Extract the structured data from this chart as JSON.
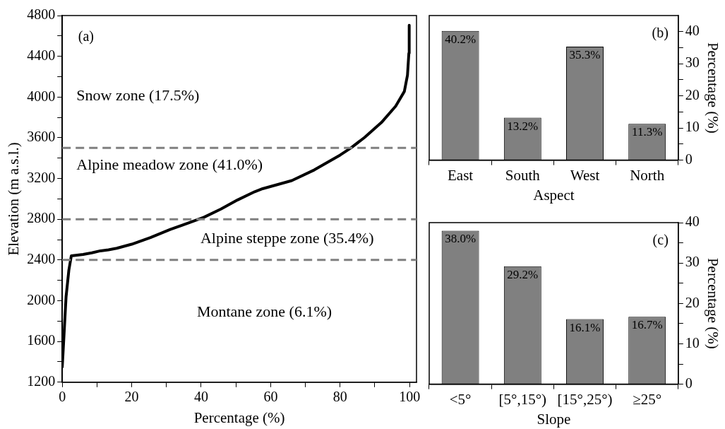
{
  "chart_data": [
    {
      "type": "line",
      "xlabel": "Percentage (%)",
      "ylabel": "Elevation (m a.s.l.)",
      "xlim": [
        0,
        102
      ],
      "ylim": [
        1200,
        4800
      ],
      "xticks": [
        0,
        {
          "value": 10,
          "label": null
        },
        20,
        {
          "value": 30,
          "label": null
        },
        40,
        {
          "value": 50,
          "label": null
        },
        60,
        {
          "value": 70,
          "label": null
        },
        80,
        {
          "value": 90,
          "label": null
        },
        100
      ],
      "yticks": [
        1200,
        {
          "value": 1400,
          "label": null
        },
        1600,
        {
          "value": 1800,
          "label": null
        },
        2000,
        {
          "value": 2200,
          "label": null
        },
        2400,
        {
          "value": 2600,
          "label": null
        },
        2800,
        {
          "value": 3000,
          "label": null
        },
        3200,
        {
          "value": 3400,
          "label": null
        },
        3600,
        {
          "value": 3800,
          "label": null
        },
        4000,
        {
          "value": 4200,
          "label": null
        },
        4400,
        {
          "value": 4600,
          "label": null
        },
        4800
      ],
      "series": [
        {
          "color": "#000000",
          "x": [
            0,
            1.1,
            1.9,
            2.6,
            6.0,
            8.5,
            11,
            13.3,
            15.7,
            20,
            25.4,
            31.1,
            36.8,
            40.8,
            45.7,
            50.5,
            55.4,
            57.7,
            66.1,
            72.6,
            80,
            83.1,
            87.1,
            91.9,
            96,
            98.5,
            99.4,
            99.8,
            99.9
          ],
          "values": [
            1350,
            2040,
            2300,
            2440,
            2455,
            2470,
            2490,
            2500,
            2515,
            2555,
            2620,
            2700,
            2770,
            2820,
            2900,
            2990,
            3070,
            3100,
            3180,
            3285,
            3430,
            3500,
            3605,
            3750,
            3910,
            4055,
            4215,
            4430,
            4705
          ]
        }
      ],
      "marker": "none",
      "line_style": "solid",
      "legend": false,
      "ref_lines": [
        {
          "axis": "y",
          "value": 2400,
          "color": "#808080",
          "line_style": "dashed"
        },
        {
          "axis": "y",
          "value": 2800,
          "color": "#808080",
          "line_style": "dashed"
        },
        {
          "axis": "y",
          "value": 3500,
          "color": "#808080",
          "line_style": "dashed"
        }
      ],
      "annotations": [
        "(a)",
        "Snow zone (17.5%)",
        "Alpine meadow zone (41.0%)",
        "Alpine steppe zone (35.4%)",
        "Montane zone (6.1%)"
      ]
    },
    {
      "type": "bar",
      "xlabel": "Aspect",
      "y2label": "Percentage (%)",
      "categories": [
        "East",
        "South",
        "West",
        "North"
      ],
      "series": [
        {
          "color": "#808080",
          "axis": "y2",
          "values": [
            40.2,
            13.2,
            35.3,
            11.3
          ],
          "value_labels": [
            "40.2%",
            "13.2%",
            "35.3%",
            "11.3%"
          ]
        }
      ],
      "y2lim": [
        0,
        45
      ],
      "y2ticks": [
        0,
        {
          "value": 5,
          "label": null
        },
        10,
        {
          "value": 15,
          "label": null
        },
        20,
        {
          "value": 25,
          "label": null
        },
        30,
        {
          "value": 35,
          "label": null
        },
        40
      ],
      "legend": false,
      "annotations": [
        "(b)"
      ]
    },
    {
      "type": "bar",
      "xlabel": "Slope",
      "y2label": "Percentage (%)",
      "categories": [
        "<5°",
        "[5°,15°)",
        "[15°,25°)",
        "≥25°"
      ],
      "series": [
        {
          "color": "#808080",
          "axis": "y2",
          "values": [
            38.0,
            29.2,
            16.1,
            16.7
          ],
          "value_labels": [
            "38.0%",
            "29.2%",
            "16.1%",
            "16.7%"
          ]
        }
      ],
      "y2lim": [
        0,
        40
      ],
      "y2ticks": [
        0,
        {
          "value": 5,
          "label": null
        },
        10,
        {
          "value": 15,
          "label": null
        },
        20,
        {
          "value": 25,
          "label": null
        },
        30,
        {
          "value": 35,
          "label": null
        },
        40
      ],
      "legend": false,
      "annotations": [
        "(c)"
      ]
    }
  ]
}
